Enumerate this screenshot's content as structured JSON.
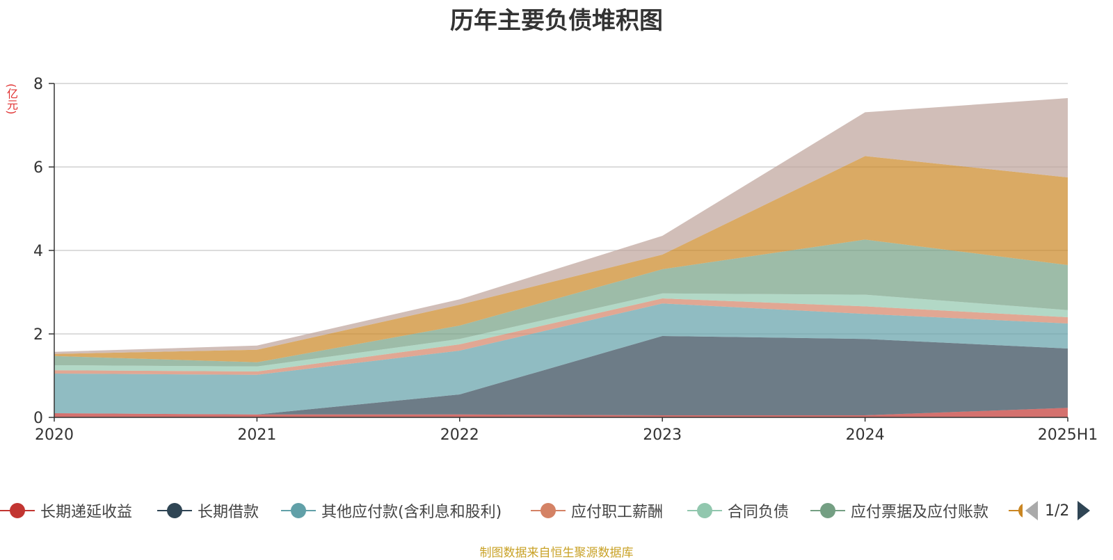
{
  "title": "历年主要负债堆积图",
  "y_unit": "(亿元)",
  "source": "制图数据来自恒生聚源数据库",
  "pager": "1/2",
  "chart_data": {
    "type": "area",
    "stacked": true,
    "x": [
      "2020",
      "2021",
      "2022",
      "2023",
      "2024",
      "2025H1"
    ],
    "yticks": [
      "0",
      "2",
      "4",
      "6",
      "8"
    ],
    "ylim": [
      0,
      8
    ],
    "grid": true,
    "legend_position": "bottom",
    "series": [
      {
        "name": "长期递延收益",
        "color": "#c23531",
        "values": [
          0.1,
          0.07,
          0.07,
          0.05,
          0.05,
          0.23
        ]
      },
      {
        "name": "长期借款",
        "color": "#2f4554",
        "values": [
          0.0,
          0.0,
          0.48,
          1.9,
          1.83,
          1.42
        ]
      },
      {
        "name": "其他应付款(含利息和股利)",
        "color": "#61a0a8",
        "values": [
          0.95,
          0.95,
          1.05,
          0.78,
          0.6,
          0.6
        ]
      },
      {
        "name": "应付职工薪酬",
        "color": "#d48265",
        "values": [
          0.08,
          0.08,
          0.15,
          0.12,
          0.18,
          0.15
        ]
      },
      {
        "name": "合同负债",
        "color": "#91c7ae",
        "values": [
          0.12,
          0.12,
          0.13,
          0.12,
          0.28,
          0.17
        ]
      },
      {
        "name": "应付票据及应付账款",
        "color": "#749f83",
        "values": [
          0.22,
          0.1,
          0.32,
          0.58,
          1.32,
          1.08
        ]
      },
      {
        "name": "",
        "color": "#ca8622",
        "values": [
          0.05,
          0.3,
          0.5,
          0.35,
          2.0,
          2.1
        ]
      },
      {
        "name": "",
        "color": "#bda29a",
        "values": [
          0.05,
          0.1,
          0.13,
          0.45,
          1.05,
          1.9
        ]
      }
    ]
  }
}
